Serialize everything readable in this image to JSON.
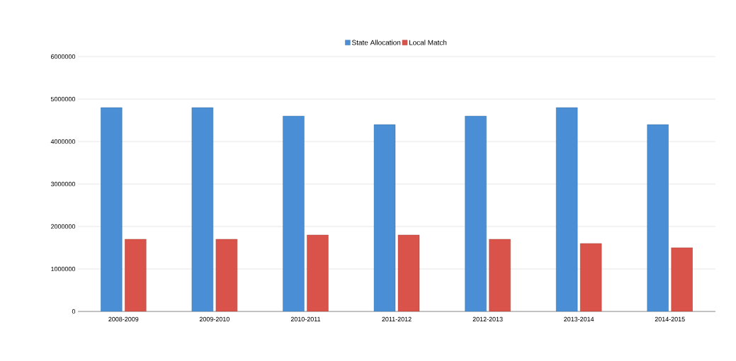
{
  "chart_data": {
    "type": "bar",
    "categories": [
      "2008-2009",
      "2009-2010",
      "2010-2011",
      "2011-2012",
      "2012-2013",
      "2013-2014",
      "2014-2015"
    ],
    "series": [
      {
        "name": "State Allocation",
        "color": "#4a8fd6",
        "values": [
          4800000,
          4800000,
          4600000,
          4400000,
          4600000,
          4800000,
          4400000
        ]
      },
      {
        "name": "Local Match",
        "color": "#d9534a",
        "values": [
          1700000,
          1700000,
          1800000,
          1800000,
          1700000,
          1600000,
          1500000
        ]
      }
    ],
    "ylim": [
      0,
      6000000
    ],
    "yticks": [
      0,
      1000000,
      2000000,
      3000000,
      4000000,
      5000000,
      6000000
    ],
    "grid": "y",
    "legend": "top"
  }
}
